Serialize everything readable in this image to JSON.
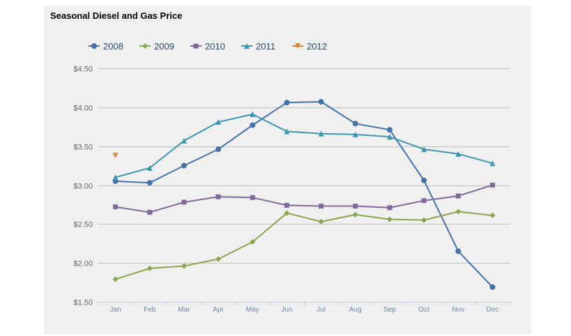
{
  "colors": {
    "2008": "#4572a7",
    "2009": "#89a54e",
    "2010": "#80699b",
    "2011": "#3d96ae",
    "2012": "#db843d",
    "grid": "#c0c0c0",
    "axis": "#c0d0e0"
  },
  "chart_data": {
    "type": "line",
    "title": "Seasonal Diesel and Gas Price",
    "categories": [
      "Jan",
      "Feb",
      "Mar",
      "Apr",
      "May",
      "Jun",
      "Jul",
      "Aug",
      "Sep",
      "Oct",
      "Nov",
      "Dec"
    ],
    "y_ticks": [
      "$1.50",
      "$2.00",
      "$2.50",
      "$3.00",
      "$3.50",
      "$4.00",
      "$4.50"
    ],
    "ylim": [
      1.5,
      4.5
    ],
    "grid": true,
    "legend_position": "top-left",
    "series": [
      {
        "name": "2008",
        "marker": "circle",
        "values": [
          3.05,
          3.03,
          3.25,
          3.46,
          3.77,
          4.06,
          4.07,
          3.79,
          3.71,
          3.06,
          2.15,
          1.69
        ]
      },
      {
        "name": "2009",
        "marker": "diamond",
        "values": [
          1.79,
          1.93,
          1.96,
          2.05,
          2.27,
          2.64,
          2.53,
          2.62,
          2.56,
          2.55,
          2.66,
          2.61
        ]
      },
      {
        "name": "2010",
        "marker": "square",
        "values": [
          2.72,
          2.65,
          2.78,
          2.85,
          2.84,
          2.74,
          2.73,
          2.73,
          2.71,
          2.8,
          2.86,
          3.0
        ]
      },
      {
        "name": "2011",
        "marker": "triangle",
        "values": [
          3.1,
          3.22,
          3.57,
          3.81,
          3.91,
          3.69,
          3.66,
          3.65,
          3.62,
          3.46,
          3.4,
          3.28
        ]
      },
      {
        "name": "2012",
        "marker": "triangle-down",
        "values": [
          3.38,
          null,
          null,
          null,
          null,
          null,
          null,
          null,
          null,
          null,
          null,
          null
        ]
      }
    ]
  }
}
